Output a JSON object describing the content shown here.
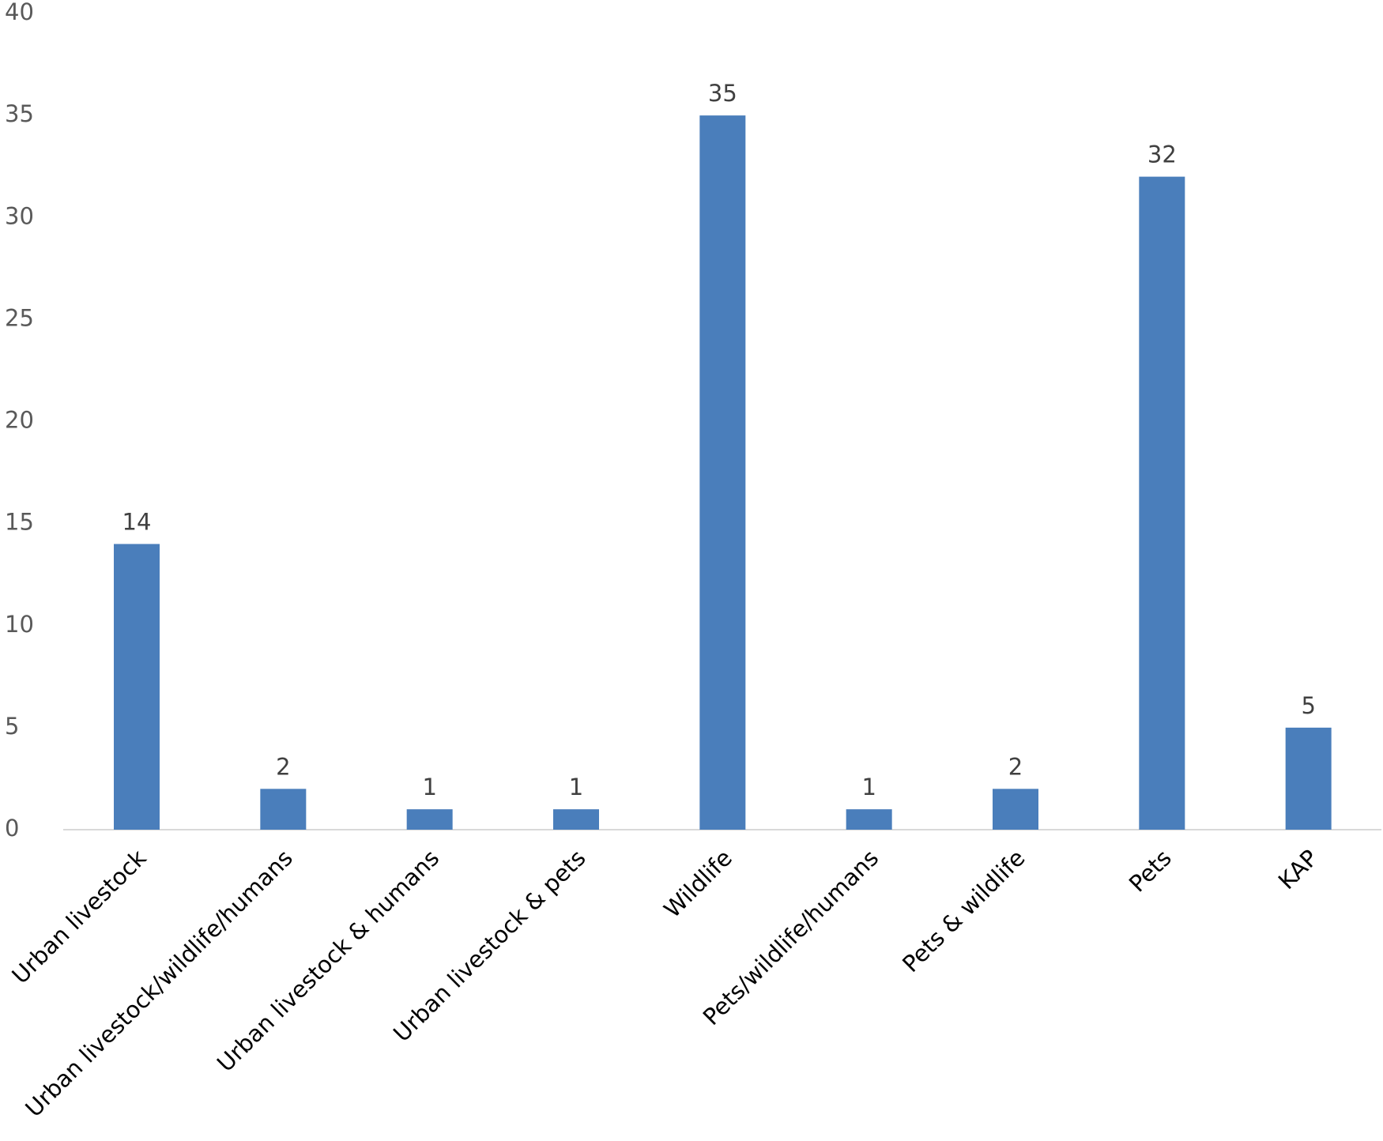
{
  "chart_data": {
    "type": "bar",
    "categories": [
      "Urban livestock",
      "Urban livestock/wildlife/humans",
      "Urban livestock & humans",
      "Urban livestock & pets",
      "Wildlife",
      "Pets/wildlife/humans",
      "Pets & wildlife",
      "Pets",
      "KAP"
    ],
    "values": [
      14,
      2,
      1,
      1,
      35,
      1,
      2,
      32,
      5
    ],
    "color": "#4a7ebb",
    "ylim": [
      0,
      40
    ],
    "yticks": [
      0,
      5,
      10,
      15,
      20,
      25,
      30,
      35,
      40
    ],
    "grid": false
  }
}
